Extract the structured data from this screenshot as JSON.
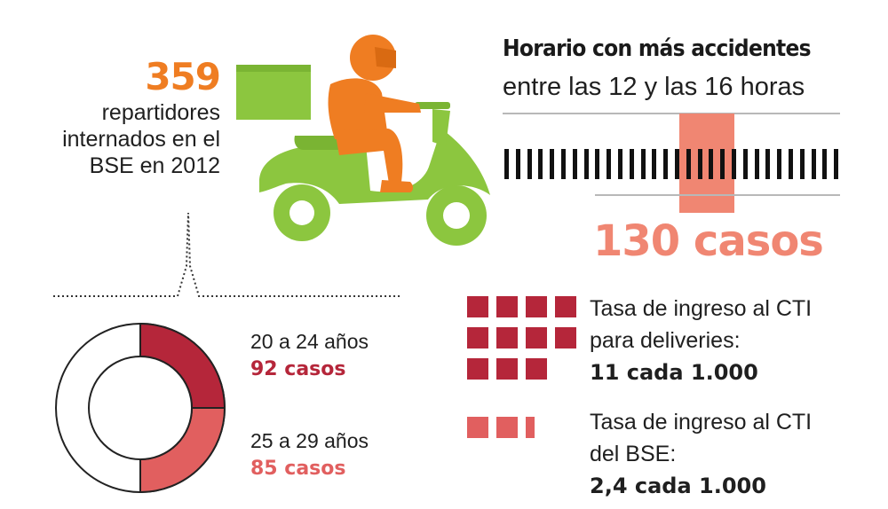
{
  "riders": {
    "number": "359",
    "line1": "repartidores",
    "line2": "internados en el",
    "line3": "BSE en 2012"
  },
  "horario": {
    "title": "Horario con más accidentes",
    "subtitle": "entre las 12 y las 16 horas",
    "cases": "130 casos",
    "tick_count": 30
  },
  "age_groups": [
    {
      "label": "20 a 24 años",
      "cases": "92 casos",
      "color": "#b5263a"
    },
    {
      "label": "25 a 29 años",
      "cases": "85 casos",
      "color": "#e15f5f"
    }
  ],
  "rates": {
    "deliveries": {
      "line1": "Tasa de ingreso al CTI",
      "line2": "para deliveries:",
      "value": "11 cada 1.000",
      "squares": 11,
      "color": "#b5263a"
    },
    "bse": {
      "line1": "Tasa de ingreso al CTI",
      "line2": "del BSE:",
      "value": "2,4 cada 1.000",
      "squares": 2.4,
      "color": "#e15f5f"
    }
  },
  "colors": {
    "orange": "#ef7d22",
    "green": "#8cc63f",
    "salmon": "#f08672",
    "dark_red": "#b5263a",
    "red": "#e15f5f"
  },
  "icons": {
    "scooter": "delivery-scooter-icon"
  }
}
